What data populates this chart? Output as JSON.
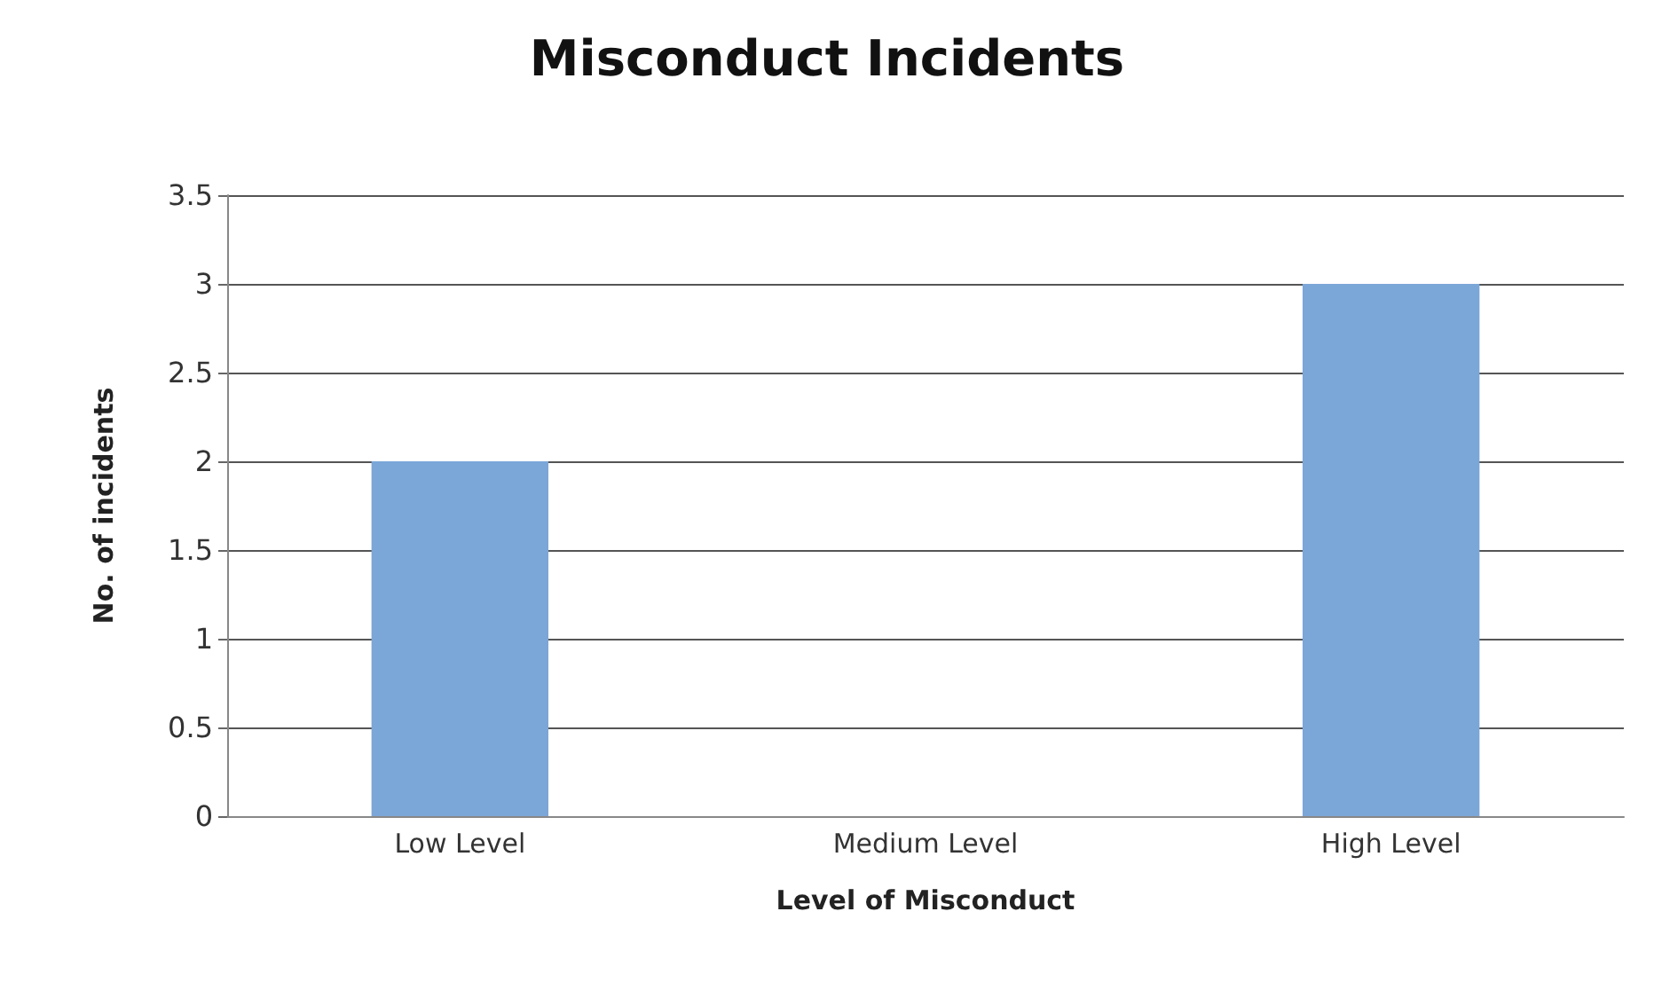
{
  "chart_data": {
    "type": "bar",
    "title": "Misconduct Incidents",
    "xlabel": "Level of Misconduct",
    "ylabel": "No. of incidents",
    "categories": [
      "Low Level",
      "Medium Level",
      "High Level"
    ],
    "values": [
      2,
      0,
      3
    ],
    "color": "#7ba6d8",
    "ylim": [
      0,
      3.5
    ],
    "yticks": [
      0,
      0.5,
      1,
      1.5,
      2,
      2.5,
      3,
      3.5
    ],
    "grid": "y"
  }
}
